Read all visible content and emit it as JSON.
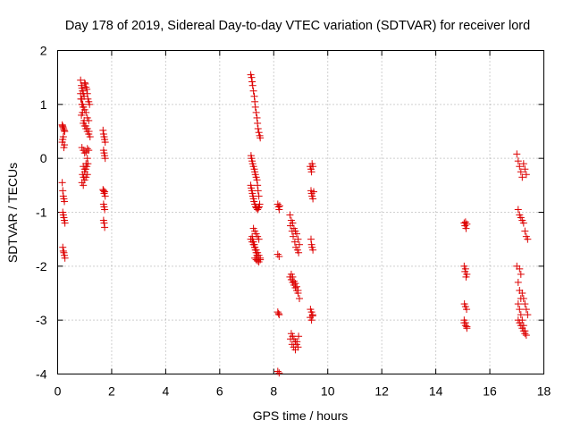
{
  "chart_data": {
    "type": "scatter",
    "title": "Day 178 of 2019, Sidereal Day-to-day VTEC variation (SDTVAR) for receiver lord",
    "xlabel": "GPS time / hours",
    "ylabel": "SDTVAR / TECUs",
    "xlim": [
      0,
      18
    ],
    "ylim": [
      -4,
      2
    ],
    "xticks": [
      "0",
      "2",
      "4",
      "6",
      "8",
      "10",
      "12",
      "14",
      "16",
      "18"
    ],
    "yticks": [
      "-4",
      "-3",
      "-2",
      "-1",
      "0",
      "1",
      "2"
    ],
    "grid": true,
    "marker": "+",
    "color": "#dd0000",
    "series": [
      {
        "name": "SDTVAR",
        "x": [
          0.17,
          0.18,
          0.2,
          0.22,
          0.24,
          0.26,
          0.17,
          0.19,
          0.21,
          0.23,
          0.25,
          0.17,
          0.19,
          0.21,
          0.23,
          0.25,
          0.19,
          0.21,
          0.23,
          0.25,
          0.27,
          0.19,
          0.21,
          0.23,
          0.25,
          0.27,
          0.85,
          0.88,
          0.9,
          0.92,
          0.95,
          0.98,
          1.0,
          1.02,
          1.05,
          1.08,
          1.1,
          1.12,
          1.15,
          1.18,
          0.86,
          0.9,
          0.95,
          1.0,
          1.05,
          1.1,
          1.15,
          0.95,
          1.0,
          1.05,
          1.1,
          1.15,
          1.2,
          0.88,
          0.92,
          0.98,
          1.04,
          1.1,
          1.16,
          0.9,
          0.95,
          1.0,
          1.05,
          1.1,
          1.15,
          0.95,
          1.0,
          1.05,
          1.1,
          0.92,
          0.96,
          1.0,
          1.04,
          1.08,
          1.12,
          0.9,
          0.95,
          1.0,
          1.05,
          1.1,
          0.85,
          0.9,
          0.93,
          0.95,
          1.68,
          1.7,
          1.72,
          1.74,
          1.76,
          1.7,
          1.72,
          1.74,
          1.76,
          1.68,
          1.7,
          1.72,
          1.74,
          1.76,
          1.7,
          1.72,
          1.74,
          1.7,
          1.72,
          1.74,
          7.15,
          7.18,
          7.2,
          7.22,
          7.25,
          7.28,
          7.3,
          7.32,
          7.35,
          7.38,
          7.4,
          7.42,
          7.45,
          7.48,
          7.5,
          7.16,
          7.18,
          7.2,
          7.22,
          7.25,
          7.28,
          7.3,
          7.32,
          7.35,
          7.38,
          7.4,
          7.42,
          7.45,
          7.48,
          7.15,
          7.17,
          7.19,
          7.21,
          7.23,
          7.25,
          7.27,
          7.3,
          7.33,
          7.36,
          7.4,
          7.43,
          7.46,
          7.2,
          7.22,
          7.25,
          7.28,
          7.3,
          7.32,
          7.35,
          7.38,
          7.4,
          7.15,
          7.2,
          7.25,
          7.3,
          7.35,
          7.4,
          7.45,
          7.5,
          7.25,
          7.3,
          7.35,
          7.4,
          7.45,
          7.3,
          7.35,
          7.4,
          7.45,
          7.5,
          8.15,
          8.18,
          8.2,
          8.22,
          8.15,
          8.2,
          8.15,
          8.18,
          8.2,
          8.15,
          8.2,
          8.6,
          8.65,
          8.7,
          8.75,
          8.8,
          8.85,
          8.9,
          8.95,
          8.62,
          8.68,
          8.72,
          8.78,
          8.82,
          8.88,
          8.92,
          8.6,
          8.65,
          8.7,
          8.75,
          8.8,
          8.85,
          8.9,
          8.65,
          8.7,
          8.75,
          8.8,
          8.85,
          8.9,
          8.95,
          8.62,
          8.68,
          8.74,
          8.8,
          8.86,
          8.92,
          8.65,
          8.7,
          8.75,
          8.8,
          8.85,
          8.9,
          9.35,
          9.38,
          9.4,
          9.42,
          9.45,
          9.38,
          9.4,
          9.42,
          9.45,
          9.48,
          9.38,
          9.4,
          9.42,
          9.45,
          9.36,
          9.4,
          9.44,
          9.35,
          9.4,
          9.44,
          15.05,
          15.08,
          15.1,
          15.12,
          15.15,
          15.05,
          15.08,
          15.1,
          15.12,
          15.15,
          15.06,
          15.1,
          15.14,
          15.05,
          15.1,
          15.15,
          15.05,
          15.1,
          15.15,
          17.0,
          17.05,
          17.1,
          17.15,
          17.2,
          17.25,
          17.3,
          17.35,
          17.05,
          17.1,
          17.15,
          17.2,
          17.25,
          17.3,
          17.35,
          17.4,
          17.1,
          17.15,
          17.2,
          17.25,
          17.3,
          17.35,
          17.4,
          17.0,
          17.05,
          17.1,
          17.15,
          17.05,
          17.1,
          17.15,
          17.2,
          17.25,
          17.3,
          17.05,
          17.1,
          17.15,
          17.2,
          17.25,
          17.3,
          17.35
        ],
        "y": [
          0.62,
          0.6,
          0.58,
          0.55,
          0.52,
          0.5,
          0.3,
          0.35,
          0.4,
          0.2,
          0.25,
          -0.45,
          -0.6,
          -0.7,
          -0.75,
          -0.8,
          -1.0,
          -1.05,
          -1.1,
          -1.15,
          -1.2,
          -1.65,
          -1.72,
          -1.75,
          -1.8,
          -1.85,
          1.45,
          1.35,
          1.3,
          1.25,
          1.2,
          1.15,
          1.4,
          1.38,
          1.32,
          1.28,
          1.2,
          1.1,
          1.05,
          1.0,
          1.1,
          1.0,
          0.95,
          0.9,
          0.85,
          0.75,
          0.7,
          0.65,
          0.6,
          0.55,
          0.5,
          0.45,
          0.4,
          0.8,
          0.85,
          0.7,
          0.6,
          0.55,
          0.5,
          0.2,
          0.15,
          0.1,
          0.12,
          0.18,
          0.15,
          -0.15,
          -0.2,
          -0.1,
          0.0,
          -0.3,
          -0.35,
          -0.25,
          -0.2,
          -0.15,
          -0.1,
          -0.45,
          -0.5,
          -0.4,
          -0.35,
          -0.3,
          1.2,
          1.1,
          1.0,
          0.95,
          0.52,
          0.45,
          0.4,
          0.35,
          0.3,
          0.15,
          0.1,
          0.05,
          0.0,
          -0.58,
          -0.6,
          -0.65,
          -0.62,
          -0.7,
          -0.85,
          -0.9,
          -0.95,
          -1.15,
          -1.2,
          -1.28,
          1.55,
          1.5,
          1.42,
          1.35,
          1.25,
          1.15,
          1.05,
          0.95,
          0.85,
          0.75,
          0.65,
          0.55,
          0.48,
          0.42,
          0.38,
          0.05,
          0.0,
          -0.05,
          -0.1,
          -0.15,
          -0.2,
          -0.25,
          -0.3,
          -0.35,
          -0.4,
          -0.5,
          -0.6,
          -0.7,
          -0.85,
          -0.5,
          -0.55,
          -0.6,
          -0.65,
          -0.7,
          -0.75,
          -0.8,
          -0.85,
          -0.9,
          -0.92,
          -0.95,
          -0.92,
          -0.9,
          -1.45,
          -1.5,
          -1.55,
          -1.6,
          -1.65,
          -1.7,
          -1.75,
          -1.8,
          -1.85,
          -1.5,
          -1.55,
          -1.6,
          -1.65,
          -1.7,
          -1.75,
          -1.8,
          -1.85,
          -1.3,
          -1.35,
          -1.4,
          -1.45,
          -1.5,
          -1.85,
          -1.88,
          -1.9,
          -1.92,
          -1.88,
          -0.85,
          -0.9,
          -0.95,
          -0.88,
          -1.78,
          -1.82,
          -2.85,
          -2.88,
          -2.9,
          -3.95,
          -3.98,
          -1.05,
          -1.15,
          -1.2,
          -1.3,
          -1.35,
          -1.4,
          -1.5,
          -1.6,
          -1.25,
          -1.35,
          -1.45,
          -1.55,
          -1.65,
          -1.7,
          -1.75,
          -2.2,
          -2.25,
          -2.3,
          -2.35,
          -2.4,
          -2.45,
          -2.5,
          -2.15,
          -2.2,
          -2.28,
          -2.32,
          -2.38,
          -2.45,
          -2.6,
          -3.35,
          -3.45,
          -3.5,
          -3.55,
          -3.4,
          -3.3,
          -3.25,
          -3.3,
          -3.35,
          -3.4,
          -3.45,
          -3.5,
          -0.15,
          -0.2,
          -0.25,
          -0.1,
          -0.15,
          -0.6,
          -0.65,
          -0.7,
          -0.75,
          -0.62,
          -1.5,
          -1.6,
          -1.65,
          -1.7,
          -2.8,
          -2.85,
          -2.9,
          -2.95,
          -3.0,
          -2.92,
          -1.2,
          -1.25,
          -1.18,
          -1.3,
          -1.22,
          -2.0,
          -2.1,
          -2.05,
          -2.2,
          -2.15,
          -2.7,
          -2.75,
          -2.8,
          -3.05,
          -3.1,
          -3.15,
          -3.0,
          -3.05,
          -3.12,
          0.08,
          -0.05,
          -0.15,
          -0.25,
          -0.35,
          -0.1,
          -0.2,
          -0.3,
          -0.95,
          -1.05,
          -1.1,
          -1.15,
          -1.2,
          -1.35,
          -1.45,
          -1.5,
          -2.05,
          -2.15,
          -2.5,
          -2.6,
          -2.7,
          -2.8,
          -2.9,
          -2.0,
          -2.3,
          -2.45,
          -2.6,
          -2.7,
          -2.8,
          -2.9,
          -3.0,
          -3.1,
          -3.2,
          -3.0,
          -3.05,
          -3.1,
          -3.15,
          -3.2,
          -3.25,
          -3.28
        ]
      }
    ]
  }
}
